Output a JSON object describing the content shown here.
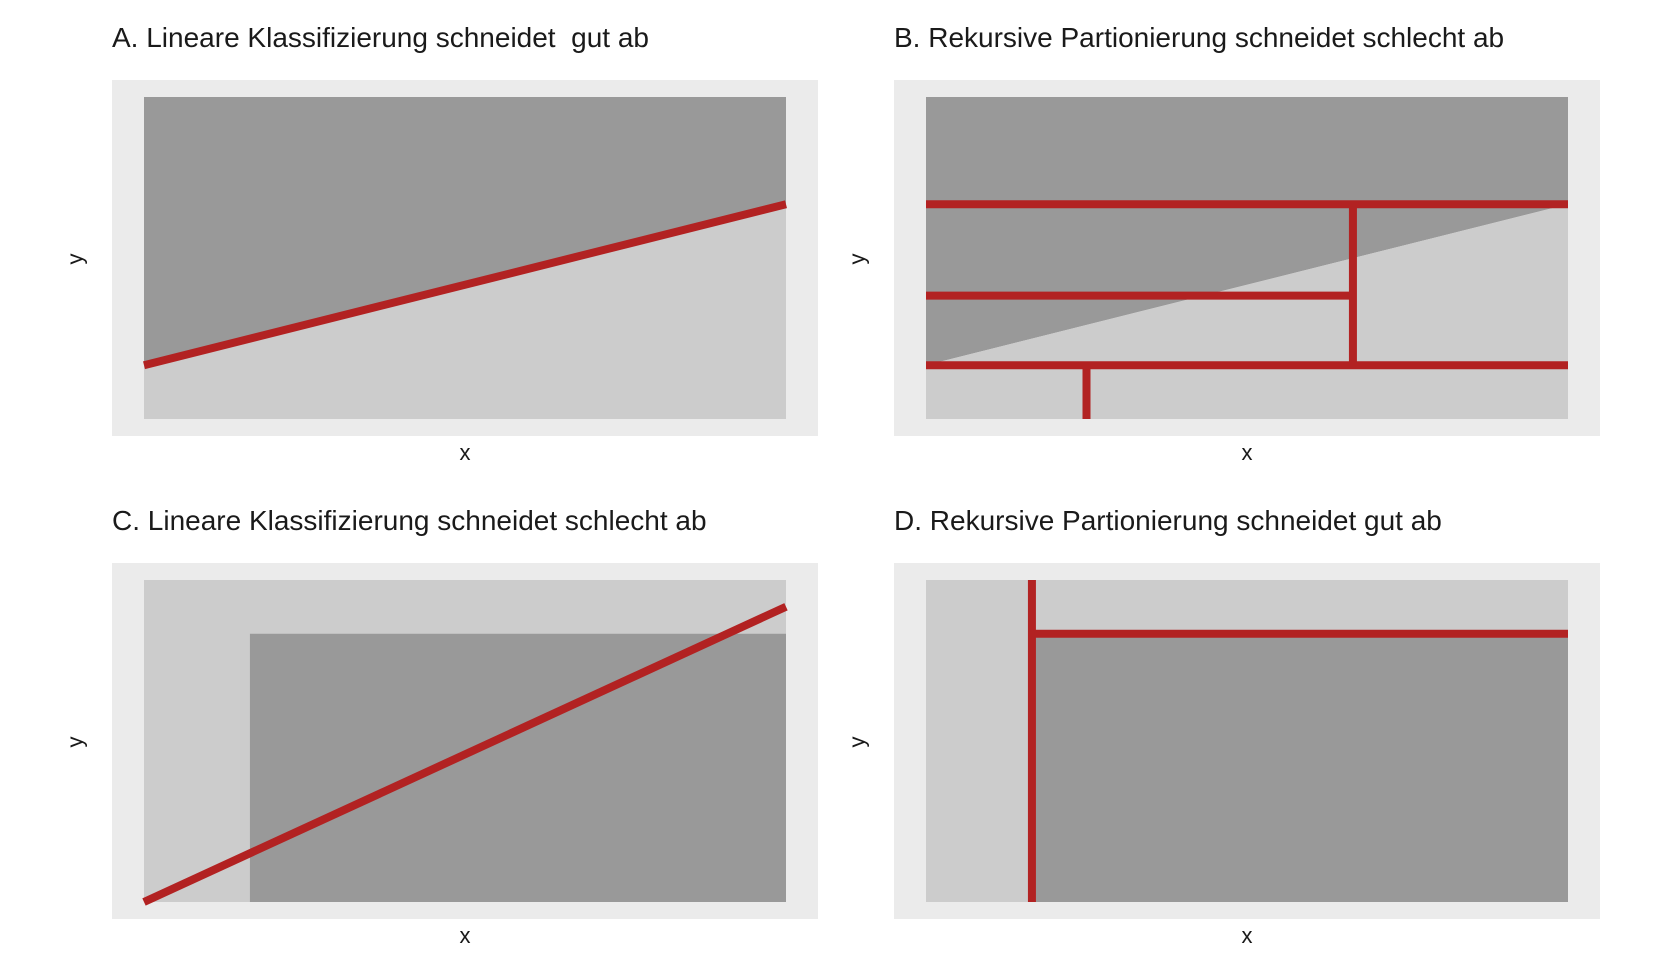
{
  "colors": {
    "dark": "#999999",
    "light": "#cccccc",
    "panel_bg": "#ebebeb",
    "boundary": "#b22222"
  },
  "panels": [
    {
      "title": "A. Lineare Klassifizierung schneidet  gut ab",
      "xlabel": "x",
      "ylabel": "y",
      "regions": [
        {
          "shade": "dark",
          "points": [
            [
              0,
              0
            ],
            [
              1,
              0
            ],
            [
              1,
              0.333
            ],
            [
              0,
              0.833
            ]
          ]
        },
        {
          "shade": "light",
          "points": [
            [
              0,
              0.833
            ],
            [
              1,
              0.333
            ],
            [
              1,
              1
            ],
            [
              0,
              1
            ]
          ]
        }
      ],
      "boundaries": [
        {
          "from": [
            0,
            0.833
          ],
          "to": [
            1,
            0.333
          ]
        }
      ]
    },
    {
      "title": "B. Rekursive Partionierung schneidet schlecht ab",
      "xlabel": "x",
      "ylabel": "y",
      "regions": [
        {
          "shade": "dark",
          "points": [
            [
              0,
              0
            ],
            [
              1,
              0
            ],
            [
              1,
              0.333
            ],
            [
              0,
              0.833
            ]
          ]
        },
        {
          "shade": "light",
          "points": [
            [
              0,
              0.833
            ],
            [
              1,
              0.333
            ],
            [
              1,
              1
            ],
            [
              0,
              1
            ]
          ]
        }
      ],
      "boundaries": [
        {
          "from": [
            0,
            0.333
          ],
          "to": [
            1,
            0.333
          ]
        },
        {
          "from": [
            0,
            0.617
          ],
          "to": [
            0.665,
            0.617
          ]
        },
        {
          "from": [
            0.665,
            0.333
          ],
          "to": [
            0.665,
            0.833
          ]
        },
        {
          "from": [
            0,
            0.833
          ],
          "to": [
            1,
            0.833
          ]
        },
        {
          "from": [
            0.25,
            0.833
          ],
          "to": [
            0.25,
            1
          ]
        }
      ]
    },
    {
      "title": "C. Lineare Klassifizierung schneidet schlecht ab",
      "xlabel": "x",
      "ylabel": "y",
      "regions": [
        {
          "shade": "light",
          "points": [
            [
              0,
              0
            ],
            [
              1,
              0
            ],
            [
              1,
              1
            ],
            [
              0,
              1
            ]
          ]
        },
        {
          "shade": "dark",
          "points": [
            [
              0.165,
              0.167
            ],
            [
              1,
              0.167
            ],
            [
              1,
              1
            ],
            [
              0.165,
              1
            ]
          ]
        }
      ],
      "boundaries": [
        {
          "from": [
            0,
            1
          ],
          "to": [
            1,
            0.083
          ]
        }
      ]
    },
    {
      "title": "D. Rekursive Partionierung schneidet gut ab",
      "xlabel": "x",
      "ylabel": "y",
      "regions": [
        {
          "shade": "light",
          "points": [
            [
              0,
              0
            ],
            [
              1,
              0
            ],
            [
              1,
              1
            ],
            [
              0,
              1
            ]
          ]
        },
        {
          "shade": "dark",
          "points": [
            [
              0.165,
              0.167
            ],
            [
              1,
              0.167
            ],
            [
              1,
              1
            ],
            [
              0.165,
              1
            ]
          ]
        }
      ],
      "boundaries": [
        {
          "from": [
            0.165,
            0
          ],
          "to": [
            0.165,
            1
          ]
        },
        {
          "from": [
            0.165,
            0.167
          ],
          "to": [
            1,
            0.167
          ]
        }
      ]
    }
  ]
}
